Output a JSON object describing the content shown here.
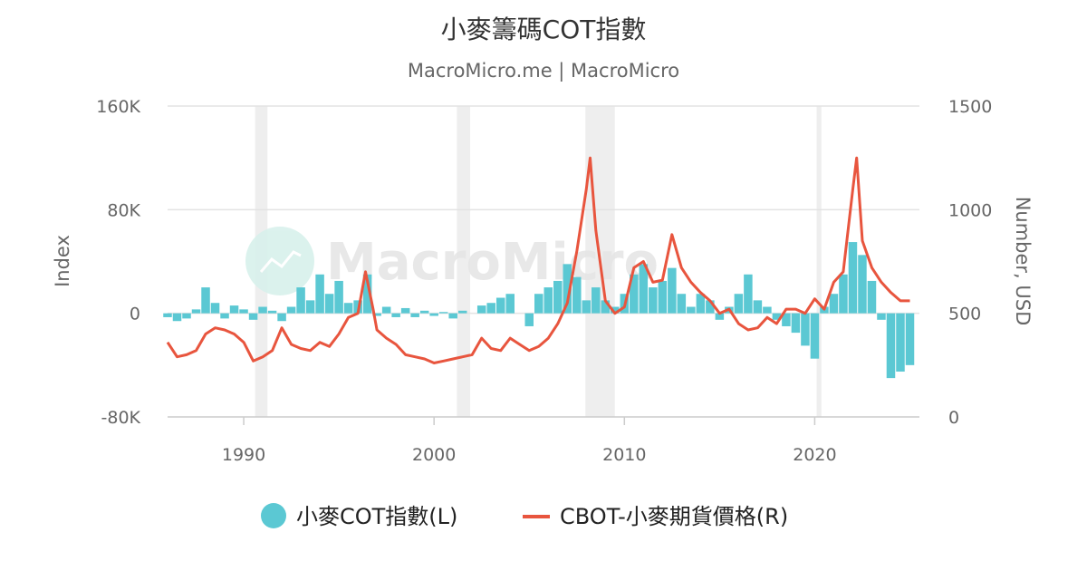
{
  "title": "小麥籌碼COT指數",
  "subtitle": "MacroMicro.me | MacroMicro",
  "watermark": "MacroMicro",
  "colors": {
    "cot": "#5bc8d3",
    "price": "#e8553e",
    "grid": "#e3e3e3",
    "recession": "#eeeeee"
  },
  "chart_data": {
    "type": "bar+line",
    "x_range": [
      1986,
      2025.5
    ],
    "x_ticks": [
      1990,
      2000,
      2010,
      2020
    ],
    "x_tick_labels": [
      "1990",
      "2000",
      "2010",
      "2020"
    ],
    "left_axis": {
      "label": "Index",
      "ylim": [
        -80000,
        160000
      ],
      "ticks": [
        -80000,
        0,
        80000,
        160000
      ],
      "tick_labels": [
        "-80K",
        "0",
        "80K",
        "160K"
      ]
    },
    "right_axis": {
      "label": "Number, USD",
      "ylim": [
        0,
        1500
      ],
      "ticks": [
        0,
        500,
        1000,
        1500
      ],
      "tick_labels": [
        "0",
        "500",
        "1000",
        "1500"
      ]
    },
    "recessions": [
      [
        1990.6,
        1991.25
      ],
      [
        2001.2,
        2001.9
      ],
      [
        2007.95,
        2009.5
      ],
      [
        2020.1,
        2020.35
      ]
    ],
    "series": [
      {
        "name": "小麥COT指數(L)",
        "type": "bar",
        "axis": "left",
        "x": [
          1986.0,
          1986.5,
          1987.0,
          1987.5,
          1988.0,
          1988.5,
          1989.0,
          1989.5,
          1990.0,
          1990.5,
          1991.0,
          1991.5,
          1992.0,
          1992.5,
          1993.0,
          1993.5,
          1994.0,
          1994.5,
          1995.0,
          1995.5,
          1996.0,
          1996.5,
          1997.0,
          1997.5,
          1998.0,
          1998.5,
          1999.0,
          1999.5,
          2000.0,
          2000.5,
          2001.0,
          2001.5,
          2002.0,
          2002.5,
          2003.0,
          2003.5,
          2004.0,
          2004.5,
          2005.0,
          2005.5,
          2006.0,
          2006.5,
          2007.0,
          2007.5,
          2008.0,
          2008.5,
          2009.0,
          2009.5,
          2010.0,
          2010.5,
          2011.0,
          2011.5,
          2012.0,
          2012.5,
          2013.0,
          2013.5,
          2014.0,
          2014.5,
          2015.0,
          2015.5,
          2016.0,
          2016.5,
          2017.0,
          2017.5,
          2018.0,
          2018.5,
          2019.0,
          2019.5,
          2020.0,
          2020.5,
          2021.0,
          2021.5,
          2022.0,
          2022.5,
          2023.0,
          2023.5,
          2024.0,
          2024.5,
          2025.0
        ],
        "values": [
          -3000,
          -6000,
          -4000,
          3000,
          20000,
          8000,
          -4000,
          6000,
          3000,
          -5000,
          5000,
          2000,
          -6000,
          5000,
          20000,
          10000,
          30000,
          15000,
          25000,
          8000,
          10000,
          30000,
          -2000,
          5000,
          -3000,
          4000,
          -3000,
          2000,
          -2000,
          1000,
          -4000,
          2000,
          0,
          6000,
          8000,
          12000,
          15000,
          0,
          -10000,
          15000,
          20000,
          25000,
          38000,
          28000,
          10000,
          20000,
          10000,
          5000,
          15000,
          30000,
          38000,
          20000,
          25000,
          35000,
          15000,
          5000,
          15000,
          10000,
          -5000,
          5000,
          15000,
          30000,
          10000,
          5000,
          -5000,
          -10000,
          -15000,
          -25000,
          -35000,
          5000,
          15000,
          30000,
          55000,
          45000,
          25000,
          -5000,
          -50000,
          -45000,
          -40000
        ]
      },
      {
        "name": "CBOT-小麥期貨價格(R)",
        "type": "line",
        "axis": "right",
        "x": [
          1986.0,
          1986.5,
          1987.0,
          1987.5,
          1988.0,
          1988.5,
          1989.0,
          1989.5,
          1990.0,
          1990.5,
          1991.0,
          1991.5,
          1992.0,
          1992.5,
          1993.0,
          1993.5,
          1994.0,
          1994.5,
          1995.0,
          1995.5,
          1996.0,
          1996.4,
          1996.8,
          1997.0,
          1997.5,
          1998.0,
          1998.5,
          1999.0,
          1999.5,
          2000.0,
          2000.5,
          2001.0,
          2001.5,
          2002.0,
          2002.5,
          2003.0,
          2003.5,
          2004.0,
          2004.5,
          2005.0,
          2005.5,
          2006.0,
          2006.5,
          2007.0,
          2007.5,
          2008.0,
          2008.2,
          2008.5,
          2009.0,
          2009.5,
          2010.0,
          2010.5,
          2011.0,
          2011.5,
          2012.0,
          2012.5,
          2013.0,
          2013.5,
          2014.0,
          2014.5,
          2015.0,
          2015.5,
          2016.0,
          2016.5,
          2017.0,
          2017.5,
          2018.0,
          2018.5,
          2019.0,
          2019.5,
          2020.0,
          2020.5,
          2021.0,
          2021.5,
          2022.0,
          2022.2,
          2022.5,
          2023.0,
          2023.5,
          2024.0,
          2024.5,
          2025.0
        ],
        "values": [
          360,
          290,
          300,
          320,
          400,
          430,
          420,
          400,
          360,
          270,
          290,
          320,
          430,
          350,
          330,
          320,
          360,
          340,
          400,
          480,
          500,
          700,
          520,
          420,
          380,
          350,
          300,
          290,
          280,
          260,
          270,
          280,
          290,
          300,
          380,
          330,
          320,
          380,
          350,
          320,
          340,
          380,
          450,
          550,
          800,
          1100,
          1250,
          900,
          560,
          500,
          530,
          720,
          750,
          650,
          660,
          880,
          720,
          650,
          600,
          560,
          500,
          520,
          450,
          420,
          430,
          480,
          450,
          520,
          520,
          500,
          570,
          520,
          650,
          700,
          1100,
          1250,
          850,
          720,
          650,
          600,
          560,
          560
        ]
      }
    ]
  },
  "legend": {
    "cot_label": "小麥COT指數(L)",
    "price_label": "CBOT-小麥期貨價格(R)"
  }
}
